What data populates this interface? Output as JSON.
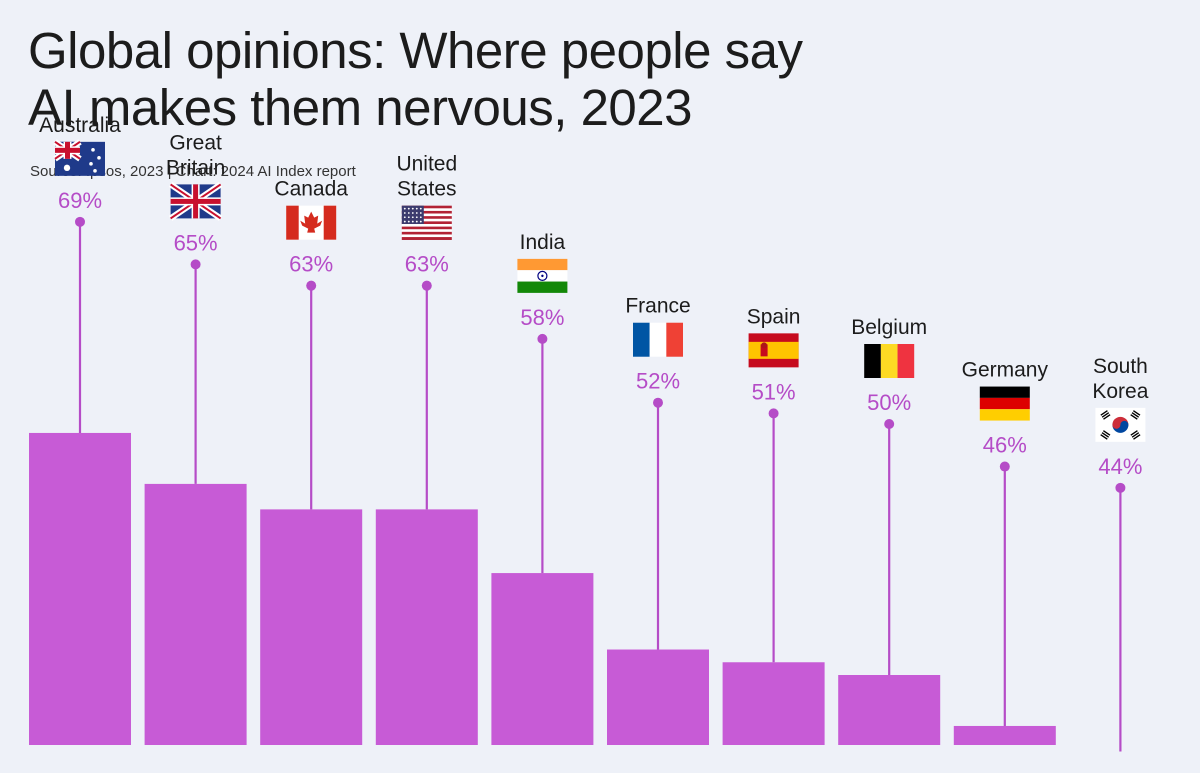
{
  "header": {
    "title_line1": "Global opinions: Where people say",
    "title_line2": "AI makes them nervous, 2023",
    "source": "Source: Ipsos, 2023 | Chart: 2024 AI Index report"
  },
  "colors": {
    "bar": "#c75bd6",
    "label": "#b54cc7",
    "background": "#eef1f8"
  },
  "chart_data": {
    "type": "bar",
    "title": "Global opinions: Where people say AI makes them nervous, 2023",
    "categories": [
      {
        "lines": [
          "Australia"
        ],
        "flag": "flag-australia-icon"
      },
      {
        "lines": [
          "Great",
          "Britain"
        ],
        "flag": "flag-great-britain-icon"
      },
      {
        "lines": [
          "Canada"
        ],
        "flag": "flag-canada-icon"
      },
      {
        "lines": [
          "United",
          "States"
        ],
        "flag": "flag-united-states-icon"
      },
      {
        "lines": [
          "India"
        ],
        "flag": "flag-india-icon"
      },
      {
        "lines": [
          "France"
        ],
        "flag": "flag-france-icon"
      },
      {
        "lines": [
          "Spain"
        ],
        "flag": "flag-spain-icon"
      },
      {
        "lines": [
          "Belgium"
        ],
        "flag": "flag-belgium-icon"
      },
      {
        "lines": [
          "Germany"
        ],
        "flag": "flag-germany-icon"
      },
      {
        "lines": [
          "South",
          "Korea"
        ],
        "flag": "flag-south-korea-icon"
      }
    ],
    "values": [
      69,
      65,
      63,
      63,
      58,
      52,
      51,
      50,
      46,
      44
    ],
    "value_labels": [
      "69%",
      "65%",
      "63%",
      "63%",
      "58%",
      "52%",
      "51%",
      "50%",
      "46%",
      "44%"
    ],
    "unit": "%",
    "grid": false,
    "legend": "none"
  }
}
